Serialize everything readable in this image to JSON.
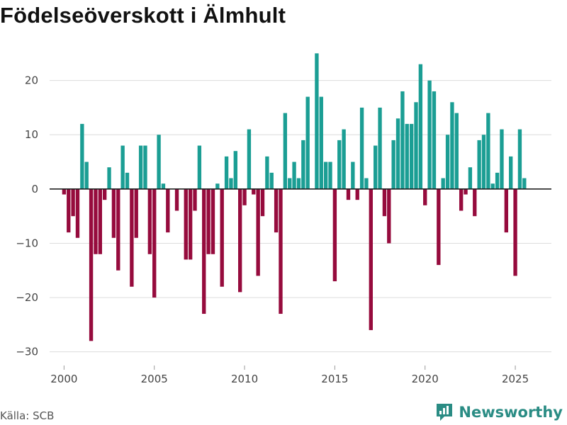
{
  "title": "Födelseöverskott i Älmhult",
  "source": "Källa: SCB",
  "brand": "Newsworthy",
  "colors": {
    "positive": "#1b9e94",
    "negative": "#960b3d",
    "grid": "#dcdcdc",
    "zero": "#222222"
  },
  "chart_data": {
    "type": "bar",
    "title": "Födelseöverskott i Älmhult",
    "xlabel": "",
    "ylabel": "",
    "xlim": [
      1999.2,
      2027
    ],
    "ylim": [
      -32,
      27
    ],
    "x_ticks": [
      2000,
      2005,
      2010,
      2015,
      2020,
      2025
    ],
    "y_ticks": [
      -30,
      -20,
      -10,
      0,
      10,
      20
    ],
    "y_tick_labels": [
      "−30",
      "−20",
      "−10",
      "0",
      "10",
      "20"
    ],
    "period": "quarter",
    "start": 2000.0,
    "step": 0.25,
    "values": [
      -1,
      -8,
      -5,
      -9,
      12,
      5,
      -28,
      -12,
      -12,
      -2,
      4,
      -9,
      -15,
      8,
      3,
      -18,
      -9,
      8,
      8,
      -12,
      -20,
      10,
      1,
      -8,
      0,
      -4,
      0,
      -13,
      -13,
      -4,
      8,
      -23,
      -12,
      -12,
      1,
      -18,
      6,
      2,
      7,
      -19,
      -3,
      11,
      -1,
      -16,
      -5,
      6,
      3,
      -8,
      -23,
      14,
      2,
      5,
      2,
      9,
      17,
      0,
      25,
      17,
      5,
      5,
      -17,
      9,
      11,
      -2,
      5,
      -2,
      15,
      2,
      -26,
      8,
      15,
      -5,
      -10,
      9,
      13,
      18,
      12,
      12,
      16,
      23,
      -3,
      20,
      18,
      -14,
      2,
      10,
      16,
      14,
      -4,
      -1,
      4,
      -5,
      9,
      10,
      14,
      1,
      3,
      11,
      -8,
      6,
      -16,
      11,
      2
    ]
  }
}
